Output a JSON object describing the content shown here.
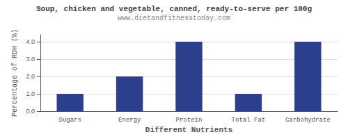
{
  "chart_data": {
    "type": "bar",
    "title": "Soup, chicken and vegetable, canned, ready-to-serve per 100g",
    "subtitle": "www.dietandfitnesstoday.com",
    "xlabel": "Different Nutrients",
    "ylabel": "Percentage of RDH (%)",
    "categories": [
      "Sugars",
      "Energy",
      "Protein",
      "Total Fat",
      "Carbohydrate"
    ],
    "values": [
      1.0,
      2.0,
      4.0,
      1.0,
      4.0
    ],
    "color": "#2b3f8c",
    "ylim": [
      0,
      4.4
    ],
    "yticks": [
      {
        "value": 0.0,
        "label": "0.0"
      },
      {
        "value": 1.0,
        "label": "1.0"
      },
      {
        "value": 2.0,
        "label": "2.0"
      },
      {
        "value": 3.0,
        "label": "3.0"
      },
      {
        "value": 4.0,
        "label": "4.0"
      }
    ],
    "grid": true
  }
}
